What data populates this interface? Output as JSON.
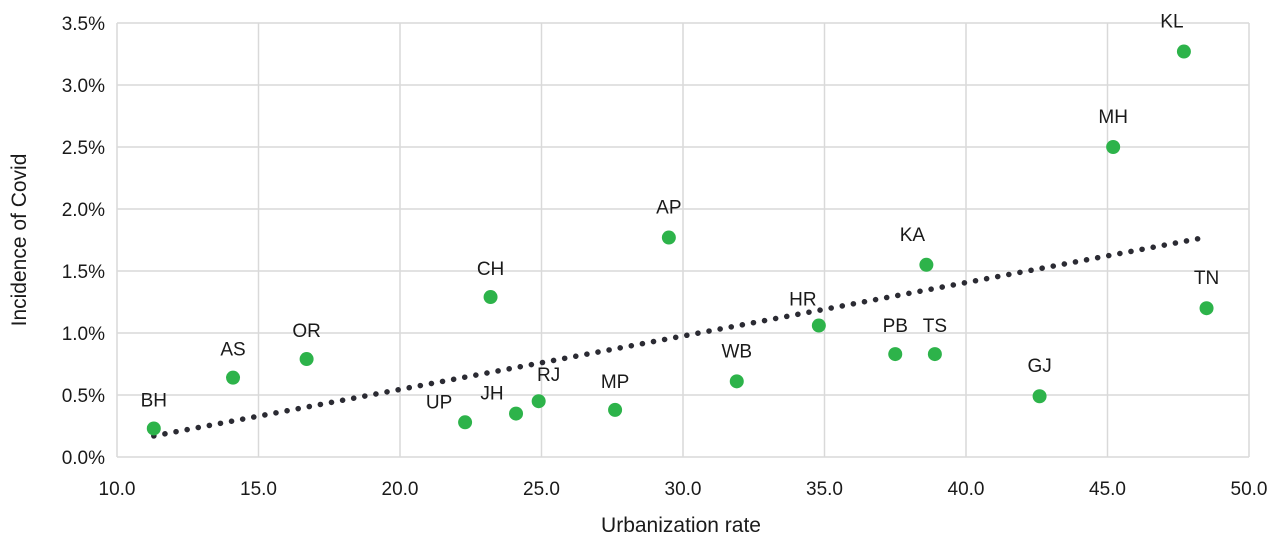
{
  "chart_data": {
    "type": "scatter",
    "title": "",
    "xlabel": "Urbanization rate",
    "ylabel": "Incidence of Covid",
    "xlim": [
      10.0,
      50.0
    ],
    "ylim": [
      0.0,
      3.5
    ],
    "x_ticks": [
      "10.0",
      "15.0",
      "20.0",
      "25.0",
      "30.0",
      "35.0",
      "40.0",
      "45.0",
      "50.0"
    ],
    "y_ticks": [
      "0.0%",
      "0.5%",
      "1.0%",
      "1.5%",
      "2.0%",
      "2.5%",
      "3.0%",
      "3.5%"
    ],
    "grid": true,
    "legend": "none",
    "series": [
      {
        "points": [
          {
            "label": "BH",
            "x": 11.3,
            "y": 0.23
          },
          {
            "label": "AS",
            "x": 14.1,
            "y": 0.64
          },
          {
            "label": "OR",
            "x": 16.7,
            "y": 0.79
          },
          {
            "label": "UP",
            "x": 22.3,
            "y": 0.28
          },
          {
            "label": "CH",
            "x": 23.2,
            "y": 1.29
          },
          {
            "label": "JH",
            "x": 24.1,
            "y": 0.35
          },
          {
            "label": "RJ",
            "x": 24.9,
            "y": 0.45
          },
          {
            "label": "MP",
            "x": 27.6,
            "y": 0.38
          },
          {
            "label": "AP",
            "x": 29.5,
            "y": 1.77
          },
          {
            "label": "WB",
            "x": 31.9,
            "y": 0.61
          },
          {
            "label": "HR",
            "x": 34.8,
            "y": 1.06
          },
          {
            "label": "PB",
            "x": 37.5,
            "y": 0.83
          },
          {
            "label": "KA",
            "x": 38.6,
            "y": 1.55
          },
          {
            "label": "TS",
            "x": 38.9,
            "y": 0.83
          },
          {
            "label": "GJ",
            "x": 42.6,
            "y": 0.49
          },
          {
            "label": "MH",
            "x": 45.2,
            "y": 2.5
          },
          {
            "label": "KL",
            "x": 47.7,
            "y": 3.27
          },
          {
            "label": "TN",
            "x": 48.5,
            "y": 1.2
          }
        ]
      }
    ],
    "trendline": {
      "type": "linear",
      "style": "dotted",
      "x": [
        11.3,
        48.2
      ],
      "y": [
        0.17,
        1.76
      ]
    },
    "colors": {
      "points": "#2db34a",
      "trendline": "#2b2b33",
      "grid": "#d9d9d9"
    }
  }
}
